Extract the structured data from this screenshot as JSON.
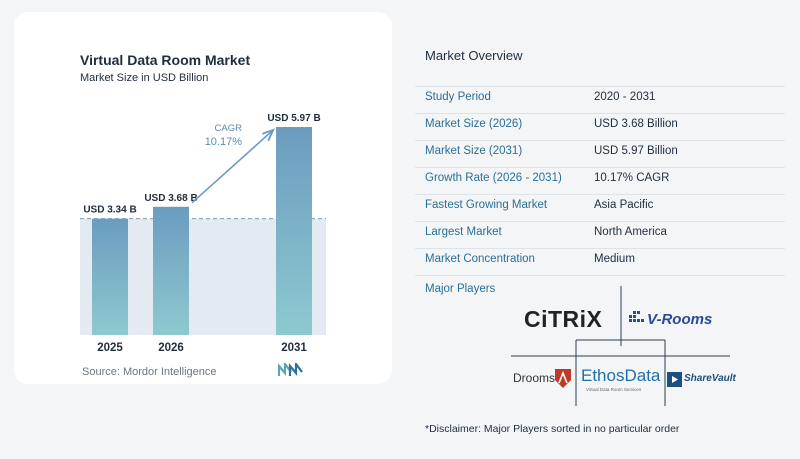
{
  "chart_data": {
    "type": "bar",
    "title": "Virtual Data Room Market",
    "subtitle": "Market Size in USD Billion",
    "categories": [
      "2025",
      "2026",
      "2031"
    ],
    "values": [
      3.34,
      3.68,
      5.97
    ],
    "data_labels": [
      "USD 3.34 B",
      "USD 3.68 B",
      "USD 5.97 B"
    ],
    "cagr_label": "CAGR",
    "cagr_value": "10.17%",
    "ylim": [
      0,
      6.2
    ],
    "grid": false,
    "legend": "none",
    "colors": {
      "bar_top": "#6b9cc0",
      "bar_bottom": "#8ec9cf",
      "band": "#e3eaf1",
      "arrow": "#6b9cc0",
      "cagr_text": "#5d8cb3"
    }
  },
  "source": "Source:  Mordor Intelligence",
  "source_logo": "mordor-intelligence-logo",
  "overview": {
    "title": "Market Overview",
    "rows": [
      {
        "label": "Study Period",
        "value": "2020 - 2031"
      },
      {
        "label": "Market Size (2026)",
        "value": "USD 3.68 Billion"
      },
      {
        "label": "Market Size (2031)",
        "value": "USD 5.97 Billion"
      },
      {
        "label": "Growth Rate (2026 - 2031)",
        "value": "10.17% CAGR"
      },
      {
        "label": "Fastest Growing Market",
        "value": "Asia Pacific"
      },
      {
        "label": "Largest Market",
        "value": "North America"
      },
      {
        "label": "Market Concentration",
        "value": "Medium"
      }
    ],
    "label_color": "#2a6f97",
    "line_color": "#dde3ea"
  },
  "players": {
    "title": "Major Players",
    "logos": {
      "citrix": "CiTRiX",
      "vrooms": "V-Rooms",
      "drooms": "Drooms",
      "ethosdata": "EthosData",
      "ethosdata_tagline": "Virtual Data Room Services",
      "sharevault": "ShareVault"
    }
  },
  "disclaimer": "*Disclaimer: Major Players sorted in no particular order"
}
